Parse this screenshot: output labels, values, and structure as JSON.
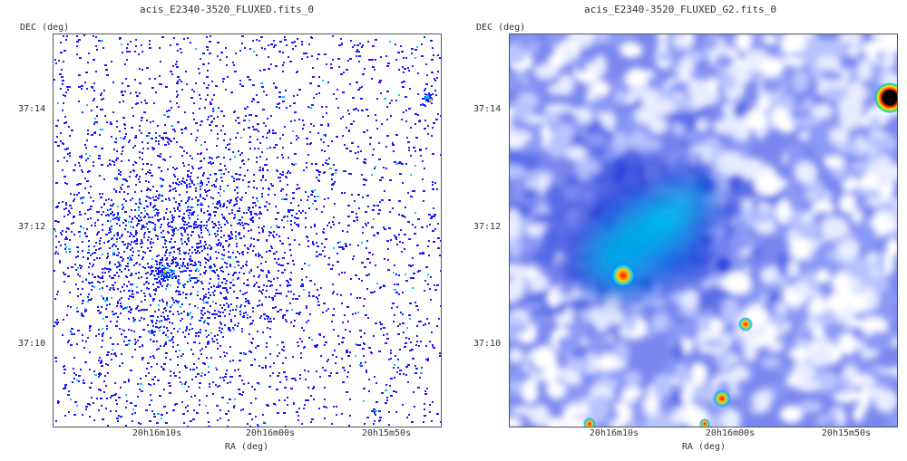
{
  "panels": [
    {
      "title": "acis_E2340-3520_FLUXED.fits_0",
      "ylabel": "DEC (deg)",
      "xlabel": "RA (deg)",
      "yticks": [
        "37:14",
        "37:12",
        "37:10"
      ],
      "xticks": [
        "20h16m10s",
        "20h16m00s",
        "20h15m50s"
      ],
      "image": "raw photon event counts (sparse blue pixels)"
    },
    {
      "title": "acis_E2340-3520_FLUXED_G2.fits_0",
      "ylabel": "DEC (deg)",
      "xlabel": "RA (deg)",
      "yticks": [
        "37:14",
        "37:12",
        "37:10"
      ],
      "xticks": [
        "20h16m10s",
        "20h16m00s",
        "20h15m50s"
      ],
      "image": "gaussian smoothed flux map"
    }
  ],
  "colors": {
    "low": "#1a1aff",
    "mid": "#00c8ff",
    "high": "#ffd000",
    "peak": "#ff2000",
    "core": "#000000",
    "background": "#ffffff"
  },
  "icons": [
    "none"
  ]
}
